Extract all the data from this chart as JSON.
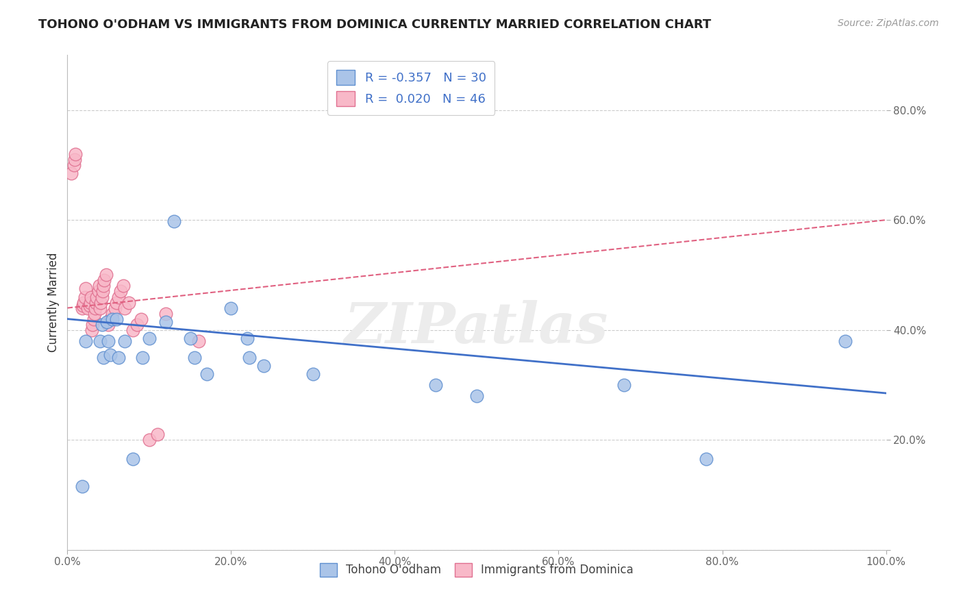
{
  "title": "TOHONO O'ODHAM VS IMMIGRANTS FROM DOMINICA CURRENTLY MARRIED CORRELATION CHART",
  "source": "Source: ZipAtlas.com",
  "ylabel": "Currently Married",
  "xlim": [
    0.0,
    1.0
  ],
  "ylim": [
    0.0,
    0.9
  ],
  "ytick_positions": [
    0.0,
    0.2,
    0.4,
    0.6,
    0.8
  ],
  "ytick_labels": [
    "",
    "20.0%",
    "40.0%",
    "60.0%",
    "80.0%"
  ],
  "xtick_positions": [
    0.0,
    0.2,
    0.4,
    0.6,
    0.8,
    1.0
  ],
  "xtick_labels": [
    "0.0%",
    "20.0%",
    "40.0%",
    "60.0%",
    "80.0%",
    "100.0%"
  ],
  "grid_color": "#cccccc",
  "blue_face_color": "#aac4e8",
  "blue_edge_color": "#6090d0",
  "pink_face_color": "#f8b8c8",
  "pink_edge_color": "#e07090",
  "blue_line_color": "#4070c8",
  "pink_line_color": "#e06080",
  "legend_text_color": "#4070c8",
  "watermark_color": "#ececec",
  "title_fontsize": 13,
  "tick_fontsize": 11,
  "legend_fontsize": 13,
  "blue_r": "-0.357",
  "blue_n": "30",
  "pink_r": "0.020",
  "pink_n": "46",
  "blue_scatter_x": [
    0.018,
    0.022,
    0.04,
    0.042,
    0.044,
    0.048,
    0.05,
    0.052,
    0.055,
    0.06,
    0.062,
    0.07,
    0.08,
    0.092,
    0.1,
    0.12,
    0.13,
    0.15,
    0.155,
    0.17,
    0.2,
    0.22,
    0.222,
    0.24,
    0.3,
    0.45,
    0.5,
    0.68,
    0.78,
    0.95
  ],
  "blue_scatter_y": [
    0.115,
    0.38,
    0.38,
    0.41,
    0.35,
    0.415,
    0.38,
    0.355,
    0.42,
    0.42,
    0.35,
    0.38,
    0.165,
    0.35,
    0.385,
    0.415,
    0.598,
    0.385,
    0.35,
    0.32,
    0.44,
    0.385,
    0.35,
    0.335,
    0.32,
    0.3,
    0.28,
    0.3,
    0.165,
    0.38
  ],
  "pink_scatter_x": [
    0.005,
    0.008,
    0.009,
    0.01,
    0.018,
    0.019,
    0.02,
    0.021,
    0.022,
    0.025,
    0.027,
    0.028,
    0.029,
    0.03,
    0.031,
    0.032,
    0.033,
    0.034,
    0.035,
    0.036,
    0.038,
    0.039,
    0.04,
    0.041,
    0.042,
    0.043,
    0.044,
    0.045,
    0.047,
    0.05,
    0.052,
    0.055,
    0.058,
    0.06,
    0.062,
    0.065,
    0.068,
    0.07,
    0.075,
    0.08,
    0.085,
    0.09,
    0.1,
    0.11,
    0.12,
    0.16
  ],
  "pink_scatter_y": [
    0.685,
    0.7,
    0.71,
    0.72,
    0.44,
    0.445,
    0.45,
    0.46,
    0.475,
    0.44,
    0.445,
    0.45,
    0.46,
    0.4,
    0.41,
    0.42,
    0.43,
    0.44,
    0.45,
    0.46,
    0.47,
    0.48,
    0.44,
    0.45,
    0.46,
    0.47,
    0.48,
    0.49,
    0.5,
    0.41,
    0.42,
    0.43,
    0.44,
    0.45,
    0.46,
    0.47,
    0.48,
    0.44,
    0.45,
    0.4,
    0.41,
    0.42,
    0.2,
    0.21,
    0.43,
    0.38
  ],
  "blue_line_y0": 0.42,
  "blue_line_y1": 0.285,
  "pink_line_y0": 0.44,
  "pink_line_y1": 0.6
}
